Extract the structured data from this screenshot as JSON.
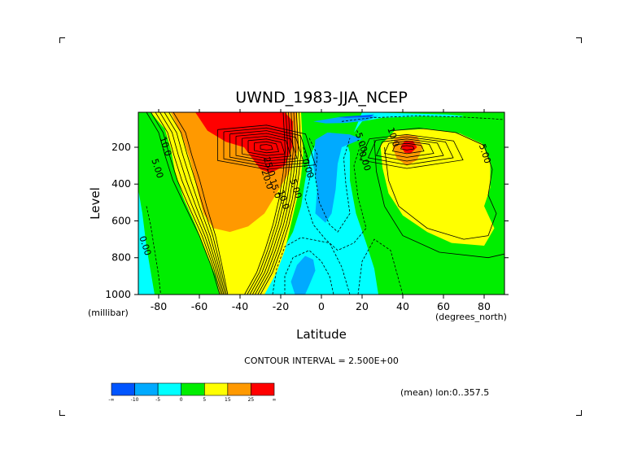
{
  "chart_data": {
    "type": "heatmap",
    "subtype": "filled-contour",
    "title": "UWND_1983-JJA_NCEP",
    "xlabel": "Latitude",
    "ylabel": "Level",
    "x_units": "(degrees_north)",
    "y_units": "(millibar)",
    "xlim": [
      -90,
      90
    ],
    "ylim": [
      1000,
      10
    ],
    "y_inverted": true,
    "x_ticks": [
      -80,
      -60,
      -40,
      -20,
      0,
      20,
      40,
      60,
      80
    ],
    "x_tick_labels": [
      "-80",
      "-60",
      "-40",
      "-20",
      "0",
      "20",
      "40",
      "60",
      "80"
    ],
    "y_ticks": [
      200,
      400,
      600,
      800,
      1000
    ],
    "y_tick_labels": [
      "200",
      "400",
      "600",
      "800",
      "1000"
    ],
    "contour_interval_text": "CONTOUR INTERVAL = 2.500E+00",
    "mean_text": "(mean) lon:0..357.5",
    "contour_labels": [
      {
        "text": "10.0",
        "lat": -78,
        "lev": 200
      },
      {
        "text": "5.00",
        "lat": -82,
        "lev": 320
      },
      {
        "text": "25.0",
        "lat": -27,
        "lev": 310
      },
      {
        "text": "20.0",
        "lat": -28,
        "lev": 380
      },
      {
        "text": "15.0",
        "lat": -24,
        "lev": 430
      },
      {
        "text": "10.0",
        "lat": -20,
        "lev": 490
      },
      {
        "text": "5.00",
        "lat": -14,
        "lev": 430
      },
      {
        "text": "0.00",
        "lat": -8,
        "lev": 320
      },
      {
        "text": "0.00",
        "lat": -88,
        "lev": 740
      },
      {
        "text": "-5.00",
        "lat": 18,
        "lev": 170
      },
      {
        "text": "0.00",
        "lat": 20,
        "lev": 280
      },
      {
        "text": "10.0",
        "lat": 34,
        "lev": 150
      },
      {
        "text": "5.00",
        "lat": 79,
        "lev": 240
      }
    ],
    "features": [
      {
        "name": "southern-subtropical-jet",
        "lat": -27,
        "lev": 200,
        "value": 35
      },
      {
        "name": "northern-subtropical-jet",
        "lat": 42,
        "lev": 200,
        "value": 25
      },
      {
        "name": "tropical-easterlies",
        "lat": 0,
        "lev": 150,
        "value": -15
      },
      {
        "name": "southern-low-level-easterlies",
        "lat": -10,
        "lev": 900,
        "value": -10
      }
    ],
    "colorbar": {
      "colors": [
        "#0055ff",
        "#00aaff",
        "#00ffff",
        "#00ee00",
        "#ffff00",
        "#ff9900",
        "#ff0000"
      ],
      "labels": [
        "-∞",
        "-10",
        "-5",
        "0",
        "5",
        "15",
        "25",
        "∞"
      ]
    }
  }
}
